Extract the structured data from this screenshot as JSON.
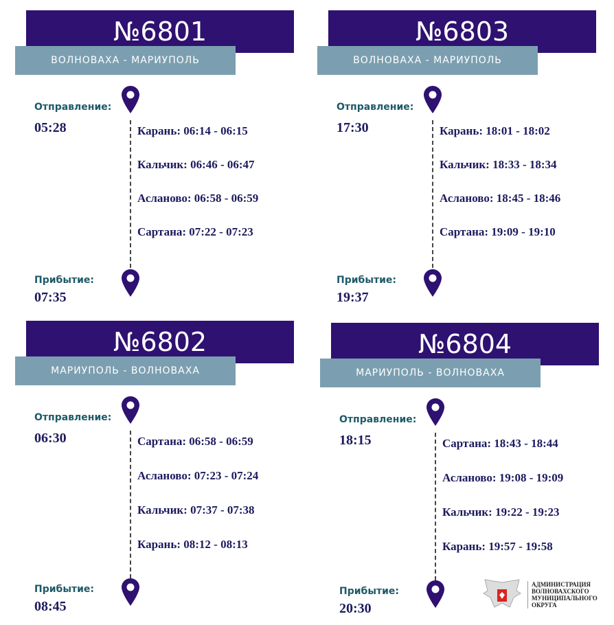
{
  "colors": {
    "header": "#2e1170",
    "route_band": "#7b9fb0",
    "label": "#1e5a68",
    "time": "#1c1a5e"
  },
  "departure_label": "Отправление:",
  "arrival_label": "Прибытие:",
  "trains": [
    {
      "number": "№6801",
      "route": "ВОЛНОВАХА -    МАРИУПОЛЬ",
      "departure": "05:28",
      "arrival": "07:35",
      "stops": [
        "Карань: 06:14 - 06:15",
        "Кальчик: 06:46 - 06:47",
        "Асланово: 06:58 - 06:59",
        "Сартана: 07:22 - 07:23"
      ]
    },
    {
      "number": "№6803",
      "route": "ВОЛНОВАХА -    МАРИУПОЛЬ",
      "departure": "17:30",
      "arrival": "19:37",
      "stops": [
        "Карань: 18:01 - 18:02",
        "Кальчик: 18:33 - 18:34",
        "Асланово: 18:45 - 18:46",
        "Сартана: 19:09 - 19:10"
      ]
    },
    {
      "number": "№6802",
      "route": "МАРИУПОЛЬ - ВОЛНОВАХА",
      "departure": "06:30",
      "arrival": "08:45",
      "stops": [
        "Сартана: 06:58 - 06:59",
        "Асланово: 07:23 - 07:24",
        "Кальчик: 07:37 - 07:38",
        "Карань: 08:12 - 08:13"
      ]
    },
    {
      "number": "№6804",
      "route": "МАРИУПОЛЬ - ВОЛНОВАХА",
      "departure": "18:15",
      "arrival": "20:30",
      "stops": [
        "Сартана: 18:43 - 18:44",
        "Асланово: 19:08 - 19:09",
        "Кальчик: 19:22 - 19:23",
        "Карань: 19:57 - 19:58"
      ]
    }
  ],
  "logo": {
    "text": "АДМИНИСТРАЦИЯ ВОЛНОВАХСКОГО МУНИЦИПАЛЬНОГО ОКРУГА",
    "icon": "coat-of-arms-eagle"
  }
}
